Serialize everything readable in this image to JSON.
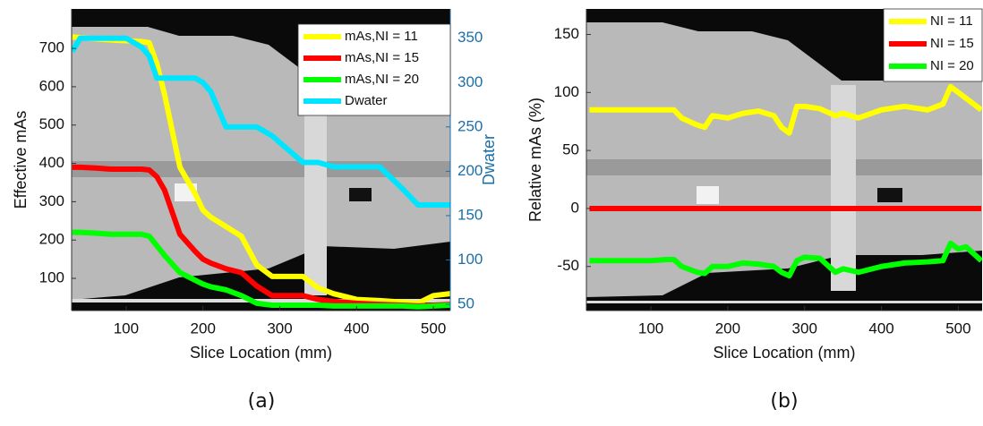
{
  "chart_data": [
    {
      "type": "line",
      "caption": "(a)",
      "xlabel": "Slice Location (mm)",
      "ylabel": "Effective mAs",
      "y2label": "Dwater",
      "y2_color": "#1b6fa8",
      "xlim": [
        29,
        522
      ],
      "xticks": [
        100,
        200,
        300,
        400,
        500
      ],
      "ylim": [
        16,
        803
      ],
      "yticks": [
        100,
        200,
        300,
        400,
        500,
        600,
        700
      ],
      "y2lim": [
        43,
        383
      ],
      "y2ticks": [
        50,
        100,
        150,
        200,
        250,
        300,
        350
      ],
      "legend": "upper right",
      "x": [
        30,
        40,
        60,
        80,
        100,
        120,
        130,
        140,
        150,
        170,
        190,
        200,
        210,
        230,
        250,
        270,
        290,
        310,
        330,
        350,
        370,
        400,
        430,
        460,
        480,
        500,
        522
      ],
      "series": [
        {
          "name": "mAs,NI = 11",
          "color": "#ffff00",
          "values": [
            730,
            728,
            725,
            722,
            720,
            718,
            715,
            660,
            580,
            390,
            320,
            278,
            260,
            235,
            210,
            135,
            105,
            105,
            105,
            75,
            60,
            45,
            42,
            38,
            35,
            55,
            60
          ]
        },
        {
          "name": "mAs,NI = 15",
          "color": "#ff0000",
          "values": [
            390,
            390,
            388,
            385,
            385,
            385,
            383,
            365,
            330,
            215,
            170,
            150,
            140,
            125,
            115,
            80,
            55,
            55,
            55,
            45,
            40,
            35,
            32,
            30,
            28,
            30,
            32
          ]
        },
        {
          "name": "mAs,NI = 20",
          "color": "#00ff00",
          "values": [
            220,
            220,
            218,
            215,
            215,
            215,
            210,
            185,
            160,
            115,
            95,
            85,
            78,
            70,
            55,
            35,
            30,
            30,
            30,
            30,
            28,
            28,
            28,
            28,
            26,
            28,
            30
          ]
        },
        {
          "name": "Dwater",
          "color": "#00e5ff",
          "axis": "y2",
          "values": [
            335,
            350,
            350,
            350,
            350,
            340,
            330,
            305,
            305,
            305,
            305,
            300,
            290,
            250,
            250,
            250,
            240,
            225,
            210,
            210,
            205,
            205,
            205,
            180,
            162,
            162,
            162
          ]
        }
      ]
    },
    {
      "type": "line",
      "caption": "(b)",
      "xlabel": "Slice Location (mm)",
      "ylabel": "Relative mAs (%)",
      "xlim": [
        16,
        531
      ],
      "xticks": [
        100,
        200,
        300,
        400,
        500
      ],
      "ylim": [
        -88,
        172
      ],
      "yticks": [
        -50,
        0,
        50,
        100,
        150
      ],
      "legend": "upper right",
      "x": [
        20,
        40,
        60,
        80,
        100,
        120,
        130,
        140,
        160,
        170,
        180,
        200,
        220,
        240,
        260,
        270,
        280,
        290,
        300,
        320,
        340,
        350,
        370,
        400,
        430,
        460,
        480,
        490,
        500,
        510,
        530
      ],
      "series": [
        {
          "name": "NI = 11",
          "color": "#ffff00",
          "values": [
            85,
            85,
            85,
            85,
            85,
            85,
            85,
            78,
            72,
            70,
            80,
            78,
            82,
            84,
            80,
            70,
            65,
            88,
            88,
            86,
            80,
            82,
            78,
            85,
            88,
            85,
            90,
            105,
            100,
            95,
            85
          ]
        },
        {
          "name": "NI = 15",
          "color": "#ff0000",
          "values": [
            0,
            0,
            0,
            0,
            0,
            0,
            0,
            0,
            0,
            0,
            0,
            0,
            0,
            0,
            0,
            0,
            0,
            0,
            0,
            0,
            0,
            0,
            0,
            0,
            0,
            0,
            0,
            0,
            0,
            0,
            0
          ]
        },
        {
          "name": "NI = 20",
          "color": "#00ff00",
          "values": [
            -45,
            -45,
            -45,
            -45,
            -45,
            -44,
            -44,
            -50,
            -55,
            -56,
            -50,
            -50,
            -47,
            -48,
            -50,
            -55,
            -58,
            -45,
            -42,
            -43,
            -55,
            -52,
            -55,
            -50,
            -47,
            -46,
            -45,
            -30,
            -35,
            -33,
            -45
          ]
        }
      ]
    }
  ]
}
